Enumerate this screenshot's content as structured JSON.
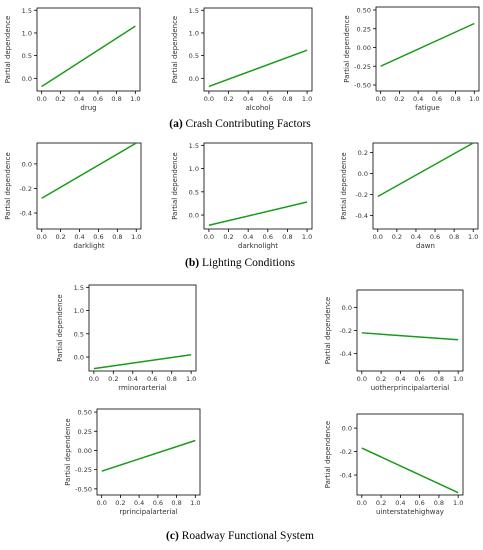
{
  "captions": {
    "a_letter": "(a)",
    "a_text": " Crash Contributing Factors",
    "b_letter": "(b)",
    "b_text": " Lighting Conditions",
    "c_letter": "(c)",
    "c_text": " Roadway Functional System"
  },
  "colors": {
    "line": "#1a9a1a",
    "axis": "#000000",
    "text": "#333333"
  },
  "chart_data": [
    {
      "type": "line",
      "ylabel": "Partial dependence",
      "xlabel": "drug",
      "x": [
        0,
        1
      ],
      "y": [
        -0.18,
        1.15
      ],
      "ylim": [
        -0.28,
        1.55
      ],
      "yticks": [
        0.0,
        0.5,
        1.0,
        1.5
      ],
      "ytick_labels": [
        "0.0",
        "0.5",
        "1.0",
        "1.5"
      ],
      "xticks": [
        0.0,
        0.2,
        0.4,
        0.6,
        0.8,
        1.0
      ],
      "xtick_labels": [
        "0.0",
        "0.2",
        "0.4",
        "0.6",
        "0.8",
        "1.0"
      ]
    },
    {
      "type": "line",
      "ylabel": "Partial dependence",
      "xlabel": "alcohol",
      "x": [
        0,
        1
      ],
      "y": [
        -0.18,
        0.62
      ],
      "ylim": [
        -0.28,
        1.55
      ],
      "yticks": [
        0.0,
        0.5,
        1.0,
        1.5
      ],
      "ytick_labels": [
        "0.0",
        "0.5",
        "1.0",
        "1.5"
      ],
      "xticks": [
        0.0,
        0.2,
        0.4,
        0.6,
        0.8,
        1.0
      ],
      "xtick_labels": [
        "0.0",
        "0.2",
        "0.4",
        "0.6",
        "0.8",
        "1.0"
      ]
    },
    {
      "type": "line",
      "ylabel": "Partial dependence",
      "xlabel": "fatigue",
      "x": [
        0,
        1
      ],
      "y": [
        -0.25,
        0.32
      ],
      "ylim": [
        -0.58,
        0.54
      ],
      "yticks": [
        -0.5,
        -0.25,
        0.0,
        0.25,
        0.5
      ],
      "ytick_labels": [
        "-0.50",
        "-0.25",
        "0.00",
        "0.25",
        "0.50"
      ],
      "xticks": [
        0.0,
        0.2,
        0.4,
        0.6,
        0.8,
        1.0
      ],
      "xtick_labels": [
        "0.0",
        "0.2",
        "0.4",
        "0.6",
        "0.8",
        "1.0"
      ]
    },
    {
      "type": "line",
      "ylabel": "Partial dependence",
      "xlabel": "darklight",
      "x": [
        0,
        1
      ],
      "y": [
        -0.28,
        0.17
      ],
      "ylim": [
        -0.53,
        0.17
      ],
      "yticks": [
        -0.4,
        -0.2,
        0.0
      ],
      "ytick_labels": [
        "-0.4",
        "-0.2",
        "0.0"
      ],
      "xticks": [
        0.0,
        0.2,
        0.4,
        0.6,
        0.8,
        1.0
      ],
      "xtick_labels": [
        "0.0",
        "0.2",
        "0.4",
        "0.6",
        "0.8",
        "1.0"
      ]
    },
    {
      "type": "line",
      "ylabel": "Partial dependence",
      "xlabel": "darknolight",
      "x": [
        0,
        1
      ],
      "y": [
        -0.22,
        0.28
      ],
      "ylim": [
        -0.3,
        1.55
      ],
      "yticks": [
        0.0,
        0.5,
        1.0,
        1.5
      ],
      "ytick_labels": [
        "0.0",
        "0.5",
        "1.0",
        "1.5"
      ],
      "xticks": [
        0.0,
        0.2,
        0.4,
        0.6,
        0.8,
        1.0
      ],
      "xtick_labels": [
        "0.0",
        "0.2",
        "0.4",
        "0.6",
        "0.8",
        "1.0"
      ]
    },
    {
      "type": "line",
      "ylabel": "Partial dependence",
      "xlabel": "dawn",
      "x": [
        0,
        1
      ],
      "y": [
        -0.22,
        0.29
      ],
      "ylim": [
        -0.53,
        0.29
      ],
      "yticks": [
        -0.4,
        -0.2,
        0.0,
        0.2
      ],
      "ytick_labels": [
        "-0.4",
        "-0.2",
        "0.0",
        "0.2"
      ],
      "xticks": [
        0.0,
        0.2,
        0.4,
        0.6,
        0.8,
        1.0
      ],
      "xtick_labels": [
        "0.0",
        "0.2",
        "0.4",
        "0.6",
        "0.8",
        "1.0"
      ]
    },
    {
      "type": "line",
      "ylabel": "Partial dependence",
      "xlabel": "rminorarterial",
      "x": [
        0,
        1
      ],
      "y": [
        -0.25,
        0.05
      ],
      "ylim": [
        -0.3,
        1.55
      ],
      "yticks": [
        0.0,
        0.5,
        1.0,
        1.5
      ],
      "ytick_labels": [
        "0.0",
        "0.5",
        "1.0",
        "1.5"
      ],
      "xticks": [
        0.0,
        0.2,
        0.4,
        0.6,
        0.8,
        1.0
      ],
      "xtick_labels": [
        "0.0",
        "0.2",
        "0.4",
        "0.6",
        "0.8",
        "1.0"
      ]
    },
    {
      "type": "line",
      "ylabel": "Partial dependence",
      "xlabel": "uotherprincipalarterial",
      "x": [
        0,
        1
      ],
      "y": [
        -0.22,
        -0.28
      ],
      "ylim": [
        -0.55,
        0.15
      ],
      "yticks": [
        -0.4,
        -0.2,
        0.0
      ],
      "ytick_labels": [
        "-0.4",
        "-0.2",
        "0.0"
      ],
      "xticks": [
        0.0,
        0.2,
        0.4,
        0.6,
        0.8,
        1.0
      ],
      "xtick_labels": [
        "0.0",
        "0.2",
        "0.4",
        "0.6",
        "0.8",
        "1.0"
      ]
    },
    {
      "type": "line",
      "ylabel": "Partial dependence",
      "xlabel": "rprincipalarterial",
      "x": [
        0,
        1
      ],
      "y": [
        -0.27,
        0.13
      ],
      "ylim": [
        -0.58,
        0.54
      ],
      "yticks": [
        -0.5,
        -0.25,
        0.0,
        0.25,
        0.5
      ],
      "ytick_labels": [
        "-0.50",
        "-0.25",
        "0.00",
        "0.25",
        "0.50"
      ],
      "xticks": [
        0.0,
        0.2,
        0.4,
        0.6,
        0.8,
        1.0
      ],
      "xtick_labels": [
        "0.0",
        "0.2",
        "0.4",
        "0.6",
        "0.8",
        "1.0"
      ]
    },
    {
      "type": "line",
      "ylabel": "Partial dependence",
      "xlabel": "uinterstatehighway",
      "x": [
        0,
        1
      ],
      "y": [
        -0.17,
        -0.55
      ],
      "ylim": [
        -0.57,
        0.12
      ],
      "yticks": [
        -0.4,
        -0.2,
        0.0
      ],
      "ytick_labels": [
        "-0.4",
        "-0.2",
        "0.0"
      ],
      "xticks": [
        0.0,
        0.2,
        0.4,
        0.6,
        0.8,
        1.0
      ],
      "xtick_labels": [
        "0.0",
        "0.2",
        "0.4",
        "0.6",
        "0.8",
        "1.0"
      ]
    }
  ]
}
